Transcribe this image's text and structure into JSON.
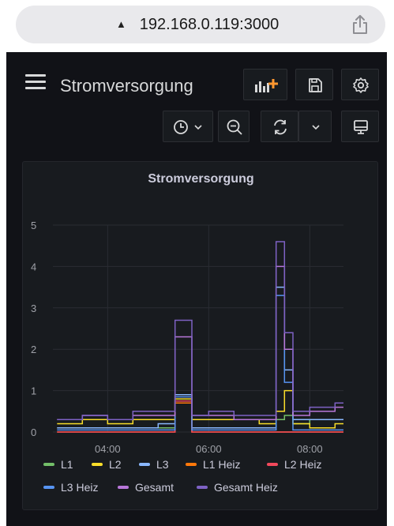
{
  "browser": {
    "url": "192.168.0.119:3000",
    "lock_glyph": "▲"
  },
  "dashboard": {
    "title": "Stromversorgung",
    "toolbar_icons": [
      "add-panel-icon",
      "save-icon",
      "settings-icon",
      "clock-icon",
      "chevron-down-icon",
      "zoom-out-icon",
      "refresh-icon",
      "chevron-down-icon",
      "tv-mode-icon"
    ]
  },
  "panel": {
    "title": "Stromversorgung"
  },
  "colors": {
    "L1": "#73bf69",
    "L2": "#fade2a",
    "L3": "#8ab8ff",
    "L1 Heiz": "#ff780a",
    "L2 Heiz": "#f2495c",
    "L3 Heiz": "#5794f2",
    "Gesamt": "#b877d9",
    "Gesamt Heiz": "#7e62c4"
  },
  "chart_data": {
    "type": "line",
    "x_ticks": [
      "04:00",
      "06:00",
      "08:00"
    ],
    "y_ticks": [
      "0",
      "1",
      "2",
      "3",
      "4",
      "5"
    ],
    "ylim": [
      0,
      5
    ],
    "xlim": [
      "02:55",
      "08:40"
    ],
    "grid": true,
    "legend_position": "bottom",
    "x": [
      "03:00",
      "03:30",
      "04:00",
      "04:30",
      "05:00",
      "05:20",
      "05:30",
      "05:40",
      "06:00",
      "06:30",
      "07:00",
      "07:20",
      "07:30",
      "07:40",
      "08:00",
      "08:30"
    ],
    "series": [
      {
        "name": "L1",
        "values": [
          0.1,
          0.1,
          0.1,
          0.1,
          0.1,
          0.9,
          0.9,
          0.1,
          0.1,
          0.1,
          0.1,
          0.3,
          0.4,
          0.2,
          0.3,
          0.3
        ]
      },
      {
        "name": "L2",
        "values": [
          0.2,
          0.3,
          0.2,
          0.3,
          0.3,
          0.8,
          0.8,
          0.3,
          0.3,
          0.3,
          0.2,
          0.5,
          1.0,
          0.2,
          0.1,
          0.2
        ]
      },
      {
        "name": "L3",
        "values": [
          0.1,
          0.1,
          0.1,
          0.1,
          0.2,
          0.9,
          0.9,
          0.1,
          0.1,
          0.1,
          0.1,
          3.5,
          1.5,
          0.3,
          0.3,
          0.3
        ]
      },
      {
        "name": "L1 Heiz",
        "values": [
          0,
          0,
          0,
          0,
          0,
          0.7,
          0.7,
          0,
          0,
          0,
          0,
          0,
          0,
          0,
          0,
          0
        ]
      },
      {
        "name": "L2 Heiz",
        "values": [
          0,
          0,
          0,
          0,
          0,
          0.75,
          0.75,
          0,
          0,
          0,
          0,
          0,
          0,
          0,
          0,
          0
        ]
      },
      {
        "name": "L3 Heiz",
        "values": [
          0.05,
          0.05,
          0.05,
          0.05,
          0.05,
          0.85,
          0.85,
          0.05,
          0.05,
          0.05,
          0.05,
          3.3,
          1.2,
          0.05,
          0.05,
          0.05
        ]
      },
      {
        "name": "Gesamt",
        "values": [
          0.3,
          0.4,
          0.3,
          0.4,
          0.4,
          2.3,
          2.3,
          0.4,
          0.4,
          0.3,
          0.3,
          4.0,
          2.0,
          0.4,
          0.5,
          0.6
        ]
      },
      {
        "name": "Gesamt Heiz",
        "values": [
          0.3,
          0.4,
          0.3,
          0.5,
          0.5,
          2.7,
          2.7,
          0.4,
          0.5,
          0.4,
          0.4,
          4.6,
          2.4,
          0.5,
          0.6,
          0.7
        ]
      }
    ]
  }
}
